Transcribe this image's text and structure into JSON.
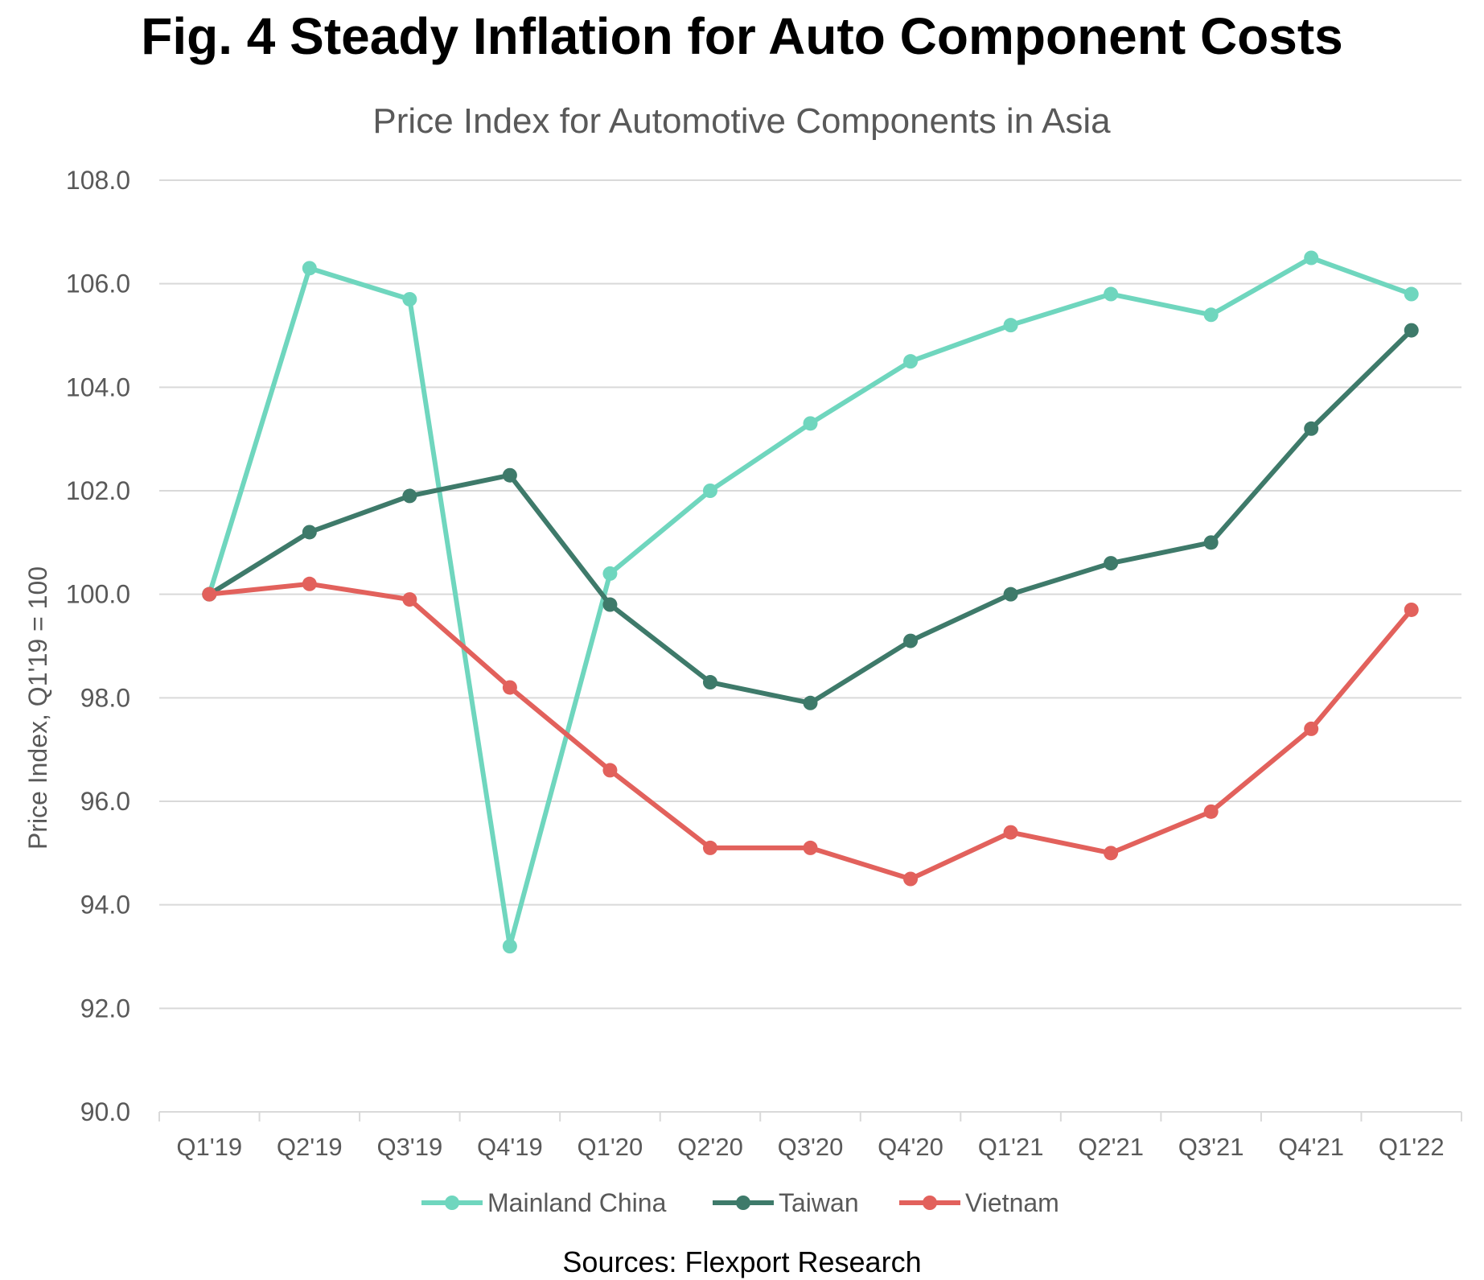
{
  "figure_title": "Fig. 4 Steady Inflation for Auto Component Costs",
  "source": "Sources: Flexport Research",
  "colors": {
    "Mainland China": "#6fd6be",
    "Taiwan": "#3e7a6a",
    "Vietnam": "#e2615c",
    "grid": "#d9d9d9",
    "text": "#595959"
  },
  "chart_data": {
    "type": "line",
    "title": "Price Index for Automotive Components in Asia",
    "xlabel": "",
    "ylabel": "Price Index, Q1'19 = 100",
    "categories": [
      "Q1'19",
      "Q2'19",
      "Q3'19",
      "Q4'19",
      "Q1'20",
      "Q2'20",
      "Q3'20",
      "Q4'20",
      "Q1'21",
      "Q2'21",
      "Q3'21",
      "Q4'21",
      "Q1'22"
    ],
    "ylim": [
      90,
      108
    ],
    "yticks": [
      "90.0",
      "92.0",
      "94.0",
      "96.0",
      "98.0",
      "100.0",
      "102.0",
      "104.0",
      "106.0",
      "108.0"
    ],
    "grid": true,
    "legend_position": "bottom",
    "series": [
      {
        "name": "Mainland China",
        "values": [
          100.0,
          106.3,
          105.7,
          93.2,
          100.4,
          102.0,
          103.3,
          104.5,
          105.2,
          105.8,
          105.4,
          106.5,
          105.8
        ]
      },
      {
        "name": "Taiwan",
        "values": [
          100.0,
          101.2,
          101.9,
          102.3,
          99.8,
          98.3,
          97.9,
          99.1,
          100.0,
          100.6,
          101.0,
          103.2,
          105.1
        ]
      },
      {
        "name": "Vietnam",
        "values": [
          100.0,
          100.2,
          99.9,
          98.2,
          96.6,
          95.1,
          95.1,
          94.5,
          95.4,
          95.0,
          95.8,
          97.4,
          99.7
        ]
      }
    ]
  }
}
